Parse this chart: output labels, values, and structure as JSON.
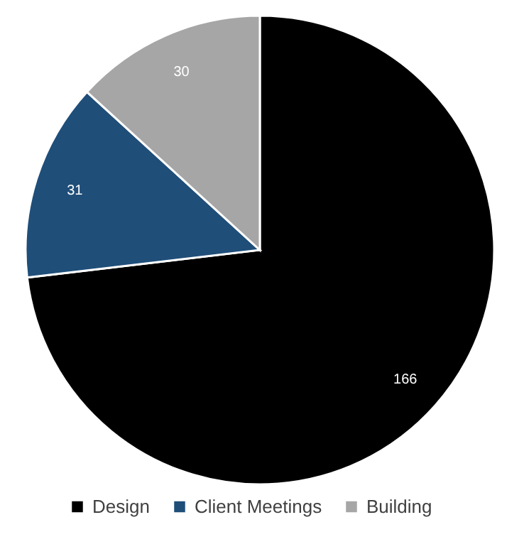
{
  "chart_data": {
    "type": "pie",
    "categories": [
      "Design",
      "Client Meetings",
      "Building"
    ],
    "values": [
      166,
      31,
      30
    ],
    "colors": [
      "#000000",
      "#1f4e79",
      "#a6a6a6"
    ],
    "data_labels": true,
    "legend": "bottom"
  }
}
